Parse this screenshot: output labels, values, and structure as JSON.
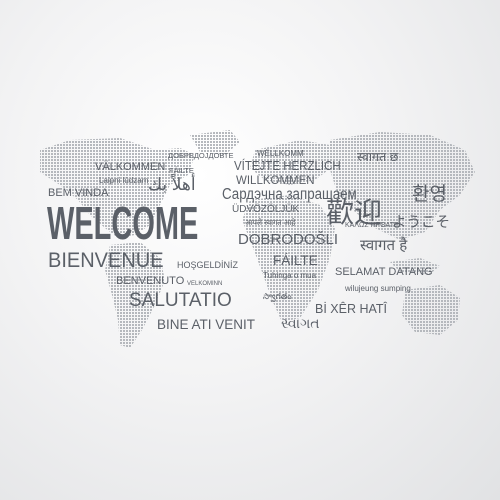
{
  "words": {
    "welcome": "WELCOME",
    "bienvenue": "BIENVENUE",
    "salutatio": "SALUTATIO",
    "bine_ati_venit": "BINE ATI VENIT",
    "sardechna": "Сардэчна запрашаем",
    "dobrodosli": "DOBRODOŠLI",
    "willkommen": "WILLKOMMEN",
    "vitejte": "VÍTEJTE HERZLICH",
    "valkommen": "VÄLKOMMEN",
    "failte_small": "FÁILTE",
    "failte_large": "FÁILTE",
    "dobredojdovte": "ДОБРЕДОЈДОВТЕ",
    "wellkomm": "WËLLKOMM",
    "hindi_top": "स्वागत छ",
    "laipni": "Laipni lūdzam",
    "arabic": "أهلاً بك",
    "bem_vinda": "BEM VINDA",
    "udvozoljuk": "ÜDVÖZÖLJÜK",
    "marathi": "आपले स्वागत आहे",
    "kalos": "ΚΑΛΩΣ ΗΡΘΑΤΕ",
    "chinese": "歡迎",
    "korean": "환영",
    "japanese": "ようこそ",
    "hindi_mid": "स्वागत है",
    "benvenuto": "BENVENUTO",
    "hosgeldiniz": "HOŞGELDİNİZ",
    "velkominn": "VELKOMINN",
    "tuhinga": "Tuhinga o mua",
    "selamat": "SELAMAT DATANG",
    "wilujeung": "wilujeung sumping",
    "telugu": "స్వాగతం",
    "bi_xer": "Bİ XÊR HATÎ",
    "gujarati": "સ્વાગત"
  },
  "colors": {
    "text": "#5b6068",
    "map_dots": "#b5b8bd",
    "background": "#f3f3f4"
  }
}
